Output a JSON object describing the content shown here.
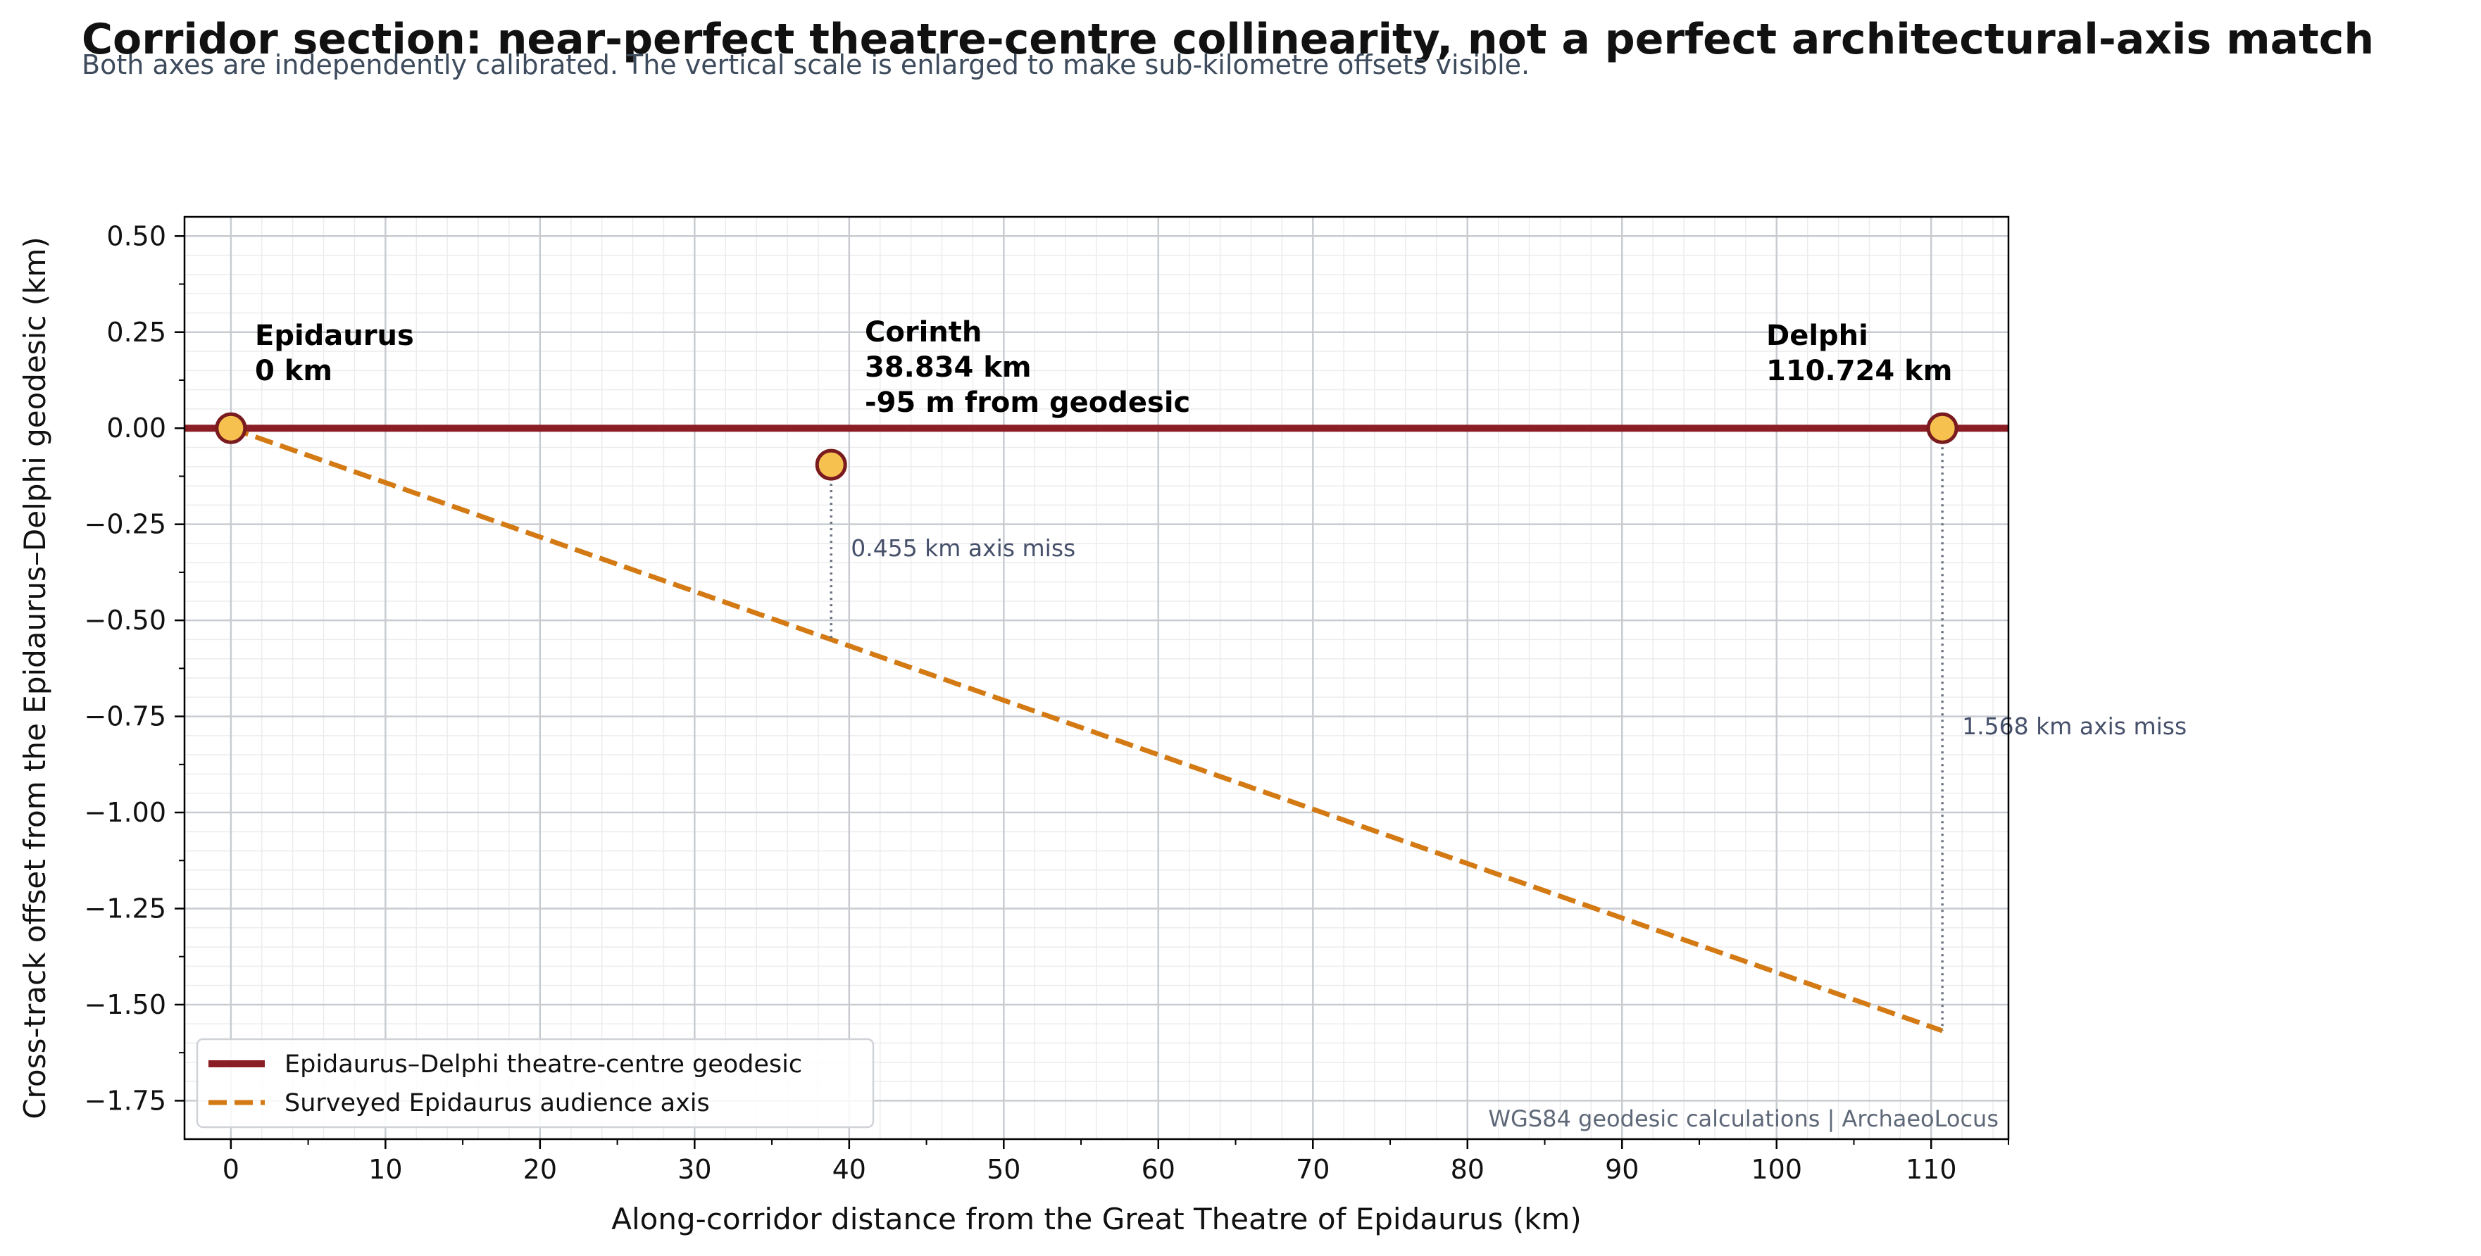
{
  "chart_data": {
    "type": "line",
    "title": "Corridor section: near-perfect theatre-centre collinearity, not a perfect architectural-axis match",
    "subtitle": "Both axes are independently calibrated. The vertical scale is enlarged to make sub-kilometre offsets visible.",
    "xlabel": "Along-corridor distance from the Great Theatre of Epidaurus (km)",
    "ylabel": "Cross-track offset from the Epidaurus–Delphi geodesic (km)",
    "xlim": [
      -3,
      115
    ],
    "ylim": [
      -1.85,
      0.55
    ],
    "x_ticks": [
      0,
      10,
      20,
      30,
      40,
      50,
      60,
      70,
      80,
      90,
      100,
      110
    ],
    "y_ticks": [
      0.5,
      0.25,
      0.0,
      -0.25,
      -0.5,
      -0.75,
      -1.0,
      -1.25,
      -1.5,
      -1.75
    ],
    "y_tick_labels": [
      "0.50",
      "0.25",
      "0.00",
      "−0.25",
      "−0.50",
      "−0.75",
      "−1.00",
      "−1.25",
      "−1.50",
      "−1.75"
    ],
    "grid": true,
    "legend_position": "bottom-left",
    "series": [
      {
        "name": "Epidaurus–Delphi theatre-centre geodesic",
        "style": "solid",
        "color": "#8b1e24",
        "x": [
          -3,
          115
        ],
        "y": [
          0,
          0
        ]
      },
      {
        "name": "Surveyed Epidaurus audience axis",
        "style": "dashed",
        "color": "#d47a14",
        "x": [
          0,
          110.724
        ],
        "y": [
          0,
          -1.568
        ]
      }
    ],
    "sites": [
      {
        "x": 0,
        "y": 0,
        "label_lines": [
          "Epidaurus",
          "0 km"
        ]
      },
      {
        "x": 38.834,
        "y": -0.095,
        "label_lines": [
          "Corinth",
          "38.834 km",
          "-95 m from geodesic"
        ]
      },
      {
        "x": 110.724,
        "y": 0,
        "label_lines": [
          "Delphi",
          "110.724 km"
        ]
      }
    ],
    "axis_misses": [
      {
        "x": 38.834,
        "y_from": -0.095,
        "y_to": -0.55,
        "label": "0.455 km axis miss"
      },
      {
        "x": 110.724,
        "y_from": 0,
        "y_to": -1.568,
        "label": "1.568 km axis miss"
      }
    ],
    "credit": "WGS84 geodesic calculations | ArchaeoLocus"
  },
  "colors": {
    "geodesic": "#8b1e24",
    "audience_axis": "#d47a14",
    "site_fill": "#f7c14f",
    "site_edge": "#7a1b1f",
    "miss_line": "#6b7280",
    "grid_major": "#c8ccd0",
    "grid_minor": "#ececee"
  }
}
